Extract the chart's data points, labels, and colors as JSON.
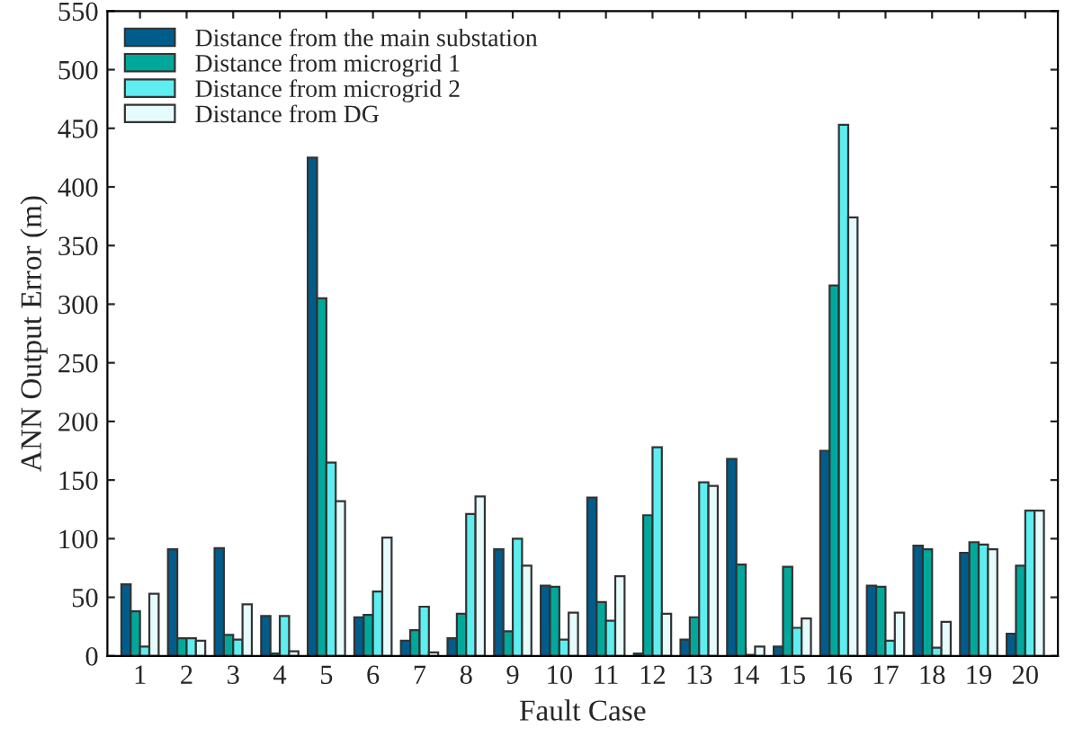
{
  "chart_data": {
    "type": "bar",
    "xlabel": "Fault Case",
    "ylabel": "ANN Output Error (m)",
    "categories": [
      "1",
      "2",
      "3",
      "4",
      "5",
      "6",
      "7",
      "8",
      "9",
      "10",
      "11",
      "12",
      "13",
      "14",
      "15",
      "16",
      "17",
      "18",
      "19",
      "20"
    ],
    "series": [
      {
        "name": "Distance from the main substation",
        "color": "#005c8a",
        "values": [
          61,
          91,
          92,
          34,
          425,
          33,
          13,
          15,
          91,
          60,
          135,
          2,
          14,
          168,
          8,
          175,
          60,
          94,
          88,
          19
        ]
      },
      {
        "name": "Distance from microgrid 1",
        "color": "#00a89c",
        "values": [
          38,
          15,
          18,
          2,
          305,
          35,
          22,
          36,
          21,
          59,
          46,
          120,
          33,
          78,
          76,
          316,
          59,
          91,
          97,
          77
        ]
      },
      {
        "name": "Distance from microgrid 2",
        "color": "#5eeef0",
        "values": [
          8,
          15,
          14,
          34,
          165,
          55,
          42,
          121,
          100,
          14,
          30,
          178,
          148,
          1,
          24,
          453,
          13,
          7,
          95,
          124
        ]
      },
      {
        "name": "Distance from DG",
        "color": "#e6fcfc",
        "values": [
          53,
          13,
          44,
          4,
          132,
          101,
          3,
          136,
          77,
          37,
          68,
          36,
          145,
          8,
          32,
          374,
          37,
          29,
          91,
          124
        ]
      }
    ],
    "ylim": [
      0,
      550
    ],
    "yticks": [
      0,
      50,
      100,
      150,
      200,
      250,
      300,
      350,
      400,
      450,
      500,
      550
    ],
    "grid": false,
    "legend": "top left"
  }
}
